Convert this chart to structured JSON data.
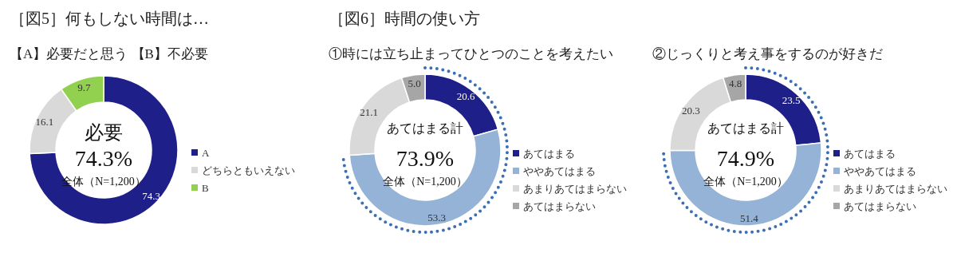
{
  "chart_data": [
    {
      "type": "donut",
      "title": "［図5］何もしない時間は…",
      "subtitle": "【A】必要だと思う 【B】不必要",
      "categories": [
        "A",
        "どちらともいえない",
        "B"
      ],
      "values": [
        74.3,
        16.1,
        9.7
      ],
      "colors": [
        "#1f1f8a",
        "#d9d9d9",
        "#92d050"
      ],
      "value_labels": [
        "74.3",
        "16.1",
        "9.7"
      ],
      "legend": "right",
      "annotations": [
        "必要",
        "74.3%",
        "全体（N=1,200）"
      ]
    },
    {
      "type": "donut",
      "title": "［図6］時間の使い方",
      "subtitle": "①時には立ち止まってひとつのことを考えたい",
      "categories": [
        "あてはまる",
        "ややあてはまる",
        "あまりあてはまらない",
        "あてはまらない"
      ],
      "values": [
        20.6,
        53.3,
        21.1,
        5.0
      ],
      "colors": [
        "#1f1f8a",
        "#95b3d7",
        "#d9d9d9",
        "#a6a6a6"
      ],
      "value_labels": [
        "20.6",
        "53.3",
        "21.1",
        "5.0"
      ],
      "legend": "right",
      "annotations": [
        "あてはまる計",
        "73.9%",
        "全体（N=1,200）"
      ]
    },
    {
      "type": "donut",
      "subtitle": "②じっくりと考え事をするのが好きだ",
      "categories": [
        "あてはまる",
        "ややあてはまる",
        "あまりあてはまらない",
        "あてはまらない"
      ],
      "values": [
        23.5,
        51.4,
        20.3,
        4.8
      ],
      "colors": [
        "#1f1f8a",
        "#95b3d7",
        "#d9d9d9",
        "#a6a6a6"
      ],
      "value_labels": [
        "23.5",
        "51.4",
        "20.3",
        "4.8"
      ],
      "legend": "right",
      "annotations": [
        "あてはまる計",
        "74.9%",
        "全体（N=1,200）"
      ]
    }
  ]
}
